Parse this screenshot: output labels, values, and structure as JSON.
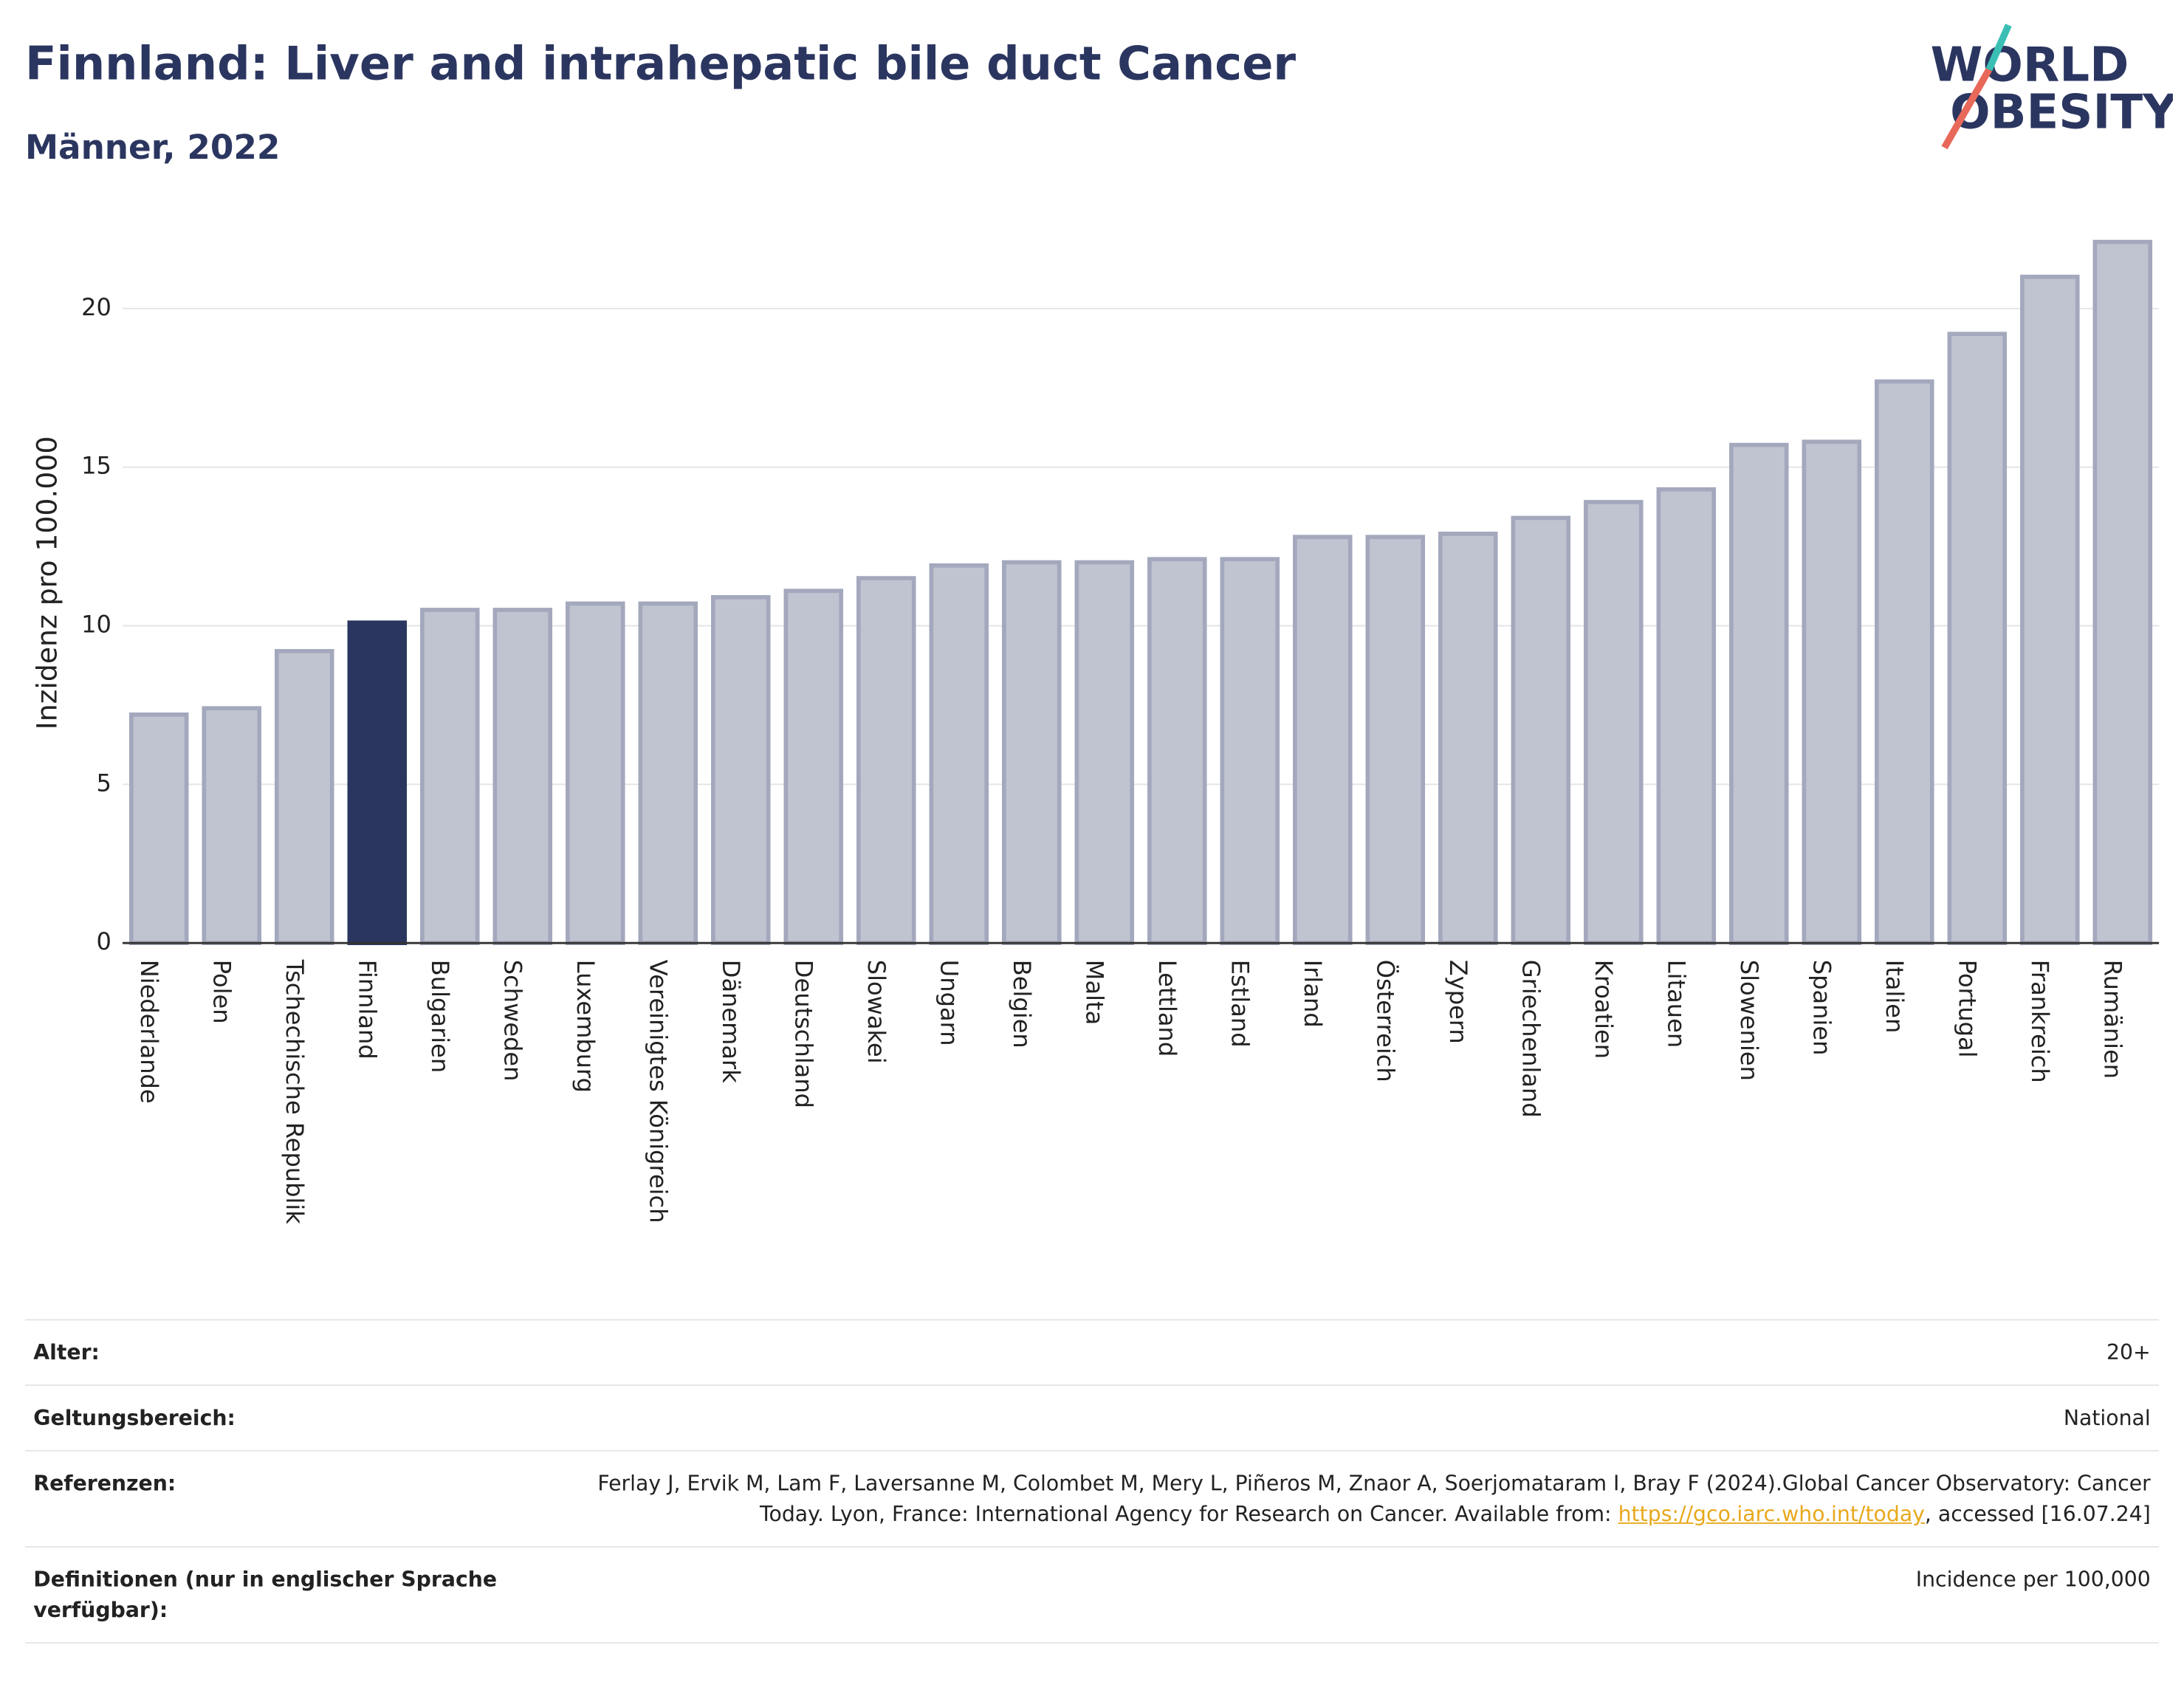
{
  "title": "Finnland: Liver and intrahepatic bile duct Cancer",
  "subtitle": "Männer, 2022",
  "logo": [
    "WORLD",
    "OBESITY"
  ],
  "chart_data": {
    "type": "bar",
    "ylabel": "Inzidenz pro 100.000",
    "categories": [
      "Niederlande",
      "Polen",
      "Tschechische Republik",
      "Finnland",
      "Bulgarien",
      "Schweden",
      "Luxemburg",
      "Vereinigtes Königreich",
      "Dänemark",
      "Deutschland",
      "Slowakei",
      "Ungarn",
      "Belgien",
      "Malta",
      "Lettland",
      "Estland",
      "Irland",
      "Österreich",
      "Zypern",
      "Griechenland",
      "Kroatien",
      "Litauen",
      "Slowenien",
      "Spanien",
      "Italien",
      "Portugal",
      "Frankreich",
      "Rumänien"
    ],
    "values": [
      7.2,
      7.4,
      9.2,
      10.1,
      10.5,
      10.5,
      10.7,
      10.7,
      10.9,
      11.1,
      11.5,
      11.9,
      12.0,
      12.0,
      12.1,
      12.1,
      12.8,
      12.8,
      12.9,
      13.4,
      13.9,
      14.3,
      15.7,
      15.8,
      17.7,
      19.2,
      21.0,
      22.1
    ],
    "colors": [
      "#c0c3d0",
      "#c0c3d0",
      "#c0c3d0",
      "#2b3660",
      "#c0c3d0",
      "#c0c3d0",
      "#c0c3d0",
      "#c0c3d0",
      "#c0c3d0",
      "#c0c3d0",
      "#c0c3d0",
      "#c0c3d0",
      "#c0c3d0",
      "#c0c3d0",
      "#c0c3d0",
      "#c0c3d0",
      "#c0c3d0",
      "#c0c3d0",
      "#c0c3d0",
      "#c0c3d0",
      "#c0c3d0",
      "#c0c3d0",
      "#c0c3d0",
      "#c0c3d0",
      "#c0c3d0",
      "#c0c3d0",
      "#c0c3d0",
      "#c0c3d0"
    ],
    "ylim": [
      0,
      22.7
    ],
    "yticks": [
      0,
      5,
      10,
      15,
      20
    ],
    "grid": true
  },
  "info": [
    {
      "label": "Alter:",
      "value": "20+"
    },
    {
      "label": "Geltungsbereich:",
      "value": "National"
    },
    {
      "label": "Referenzen:",
      "value": "Ferlay J, Ervik M, Lam F, Laversanne M, Colombet M, Mery L, Piñeros M, Znaor A, Soerjomataram I, Bray F (2024).Global Cancer Observatory: Cancer Today. Lyon, France: International Agency for Research on Cancer. Available from:",
      "link": "https://gco.iarc.who.int/today",
      "suffix": ", accessed [16.07.24]"
    },
    {
      "label": "Definitionen (nur in englischer Sprache verfügbar):",
      "value": "Incidence per 100,000"
    }
  ]
}
